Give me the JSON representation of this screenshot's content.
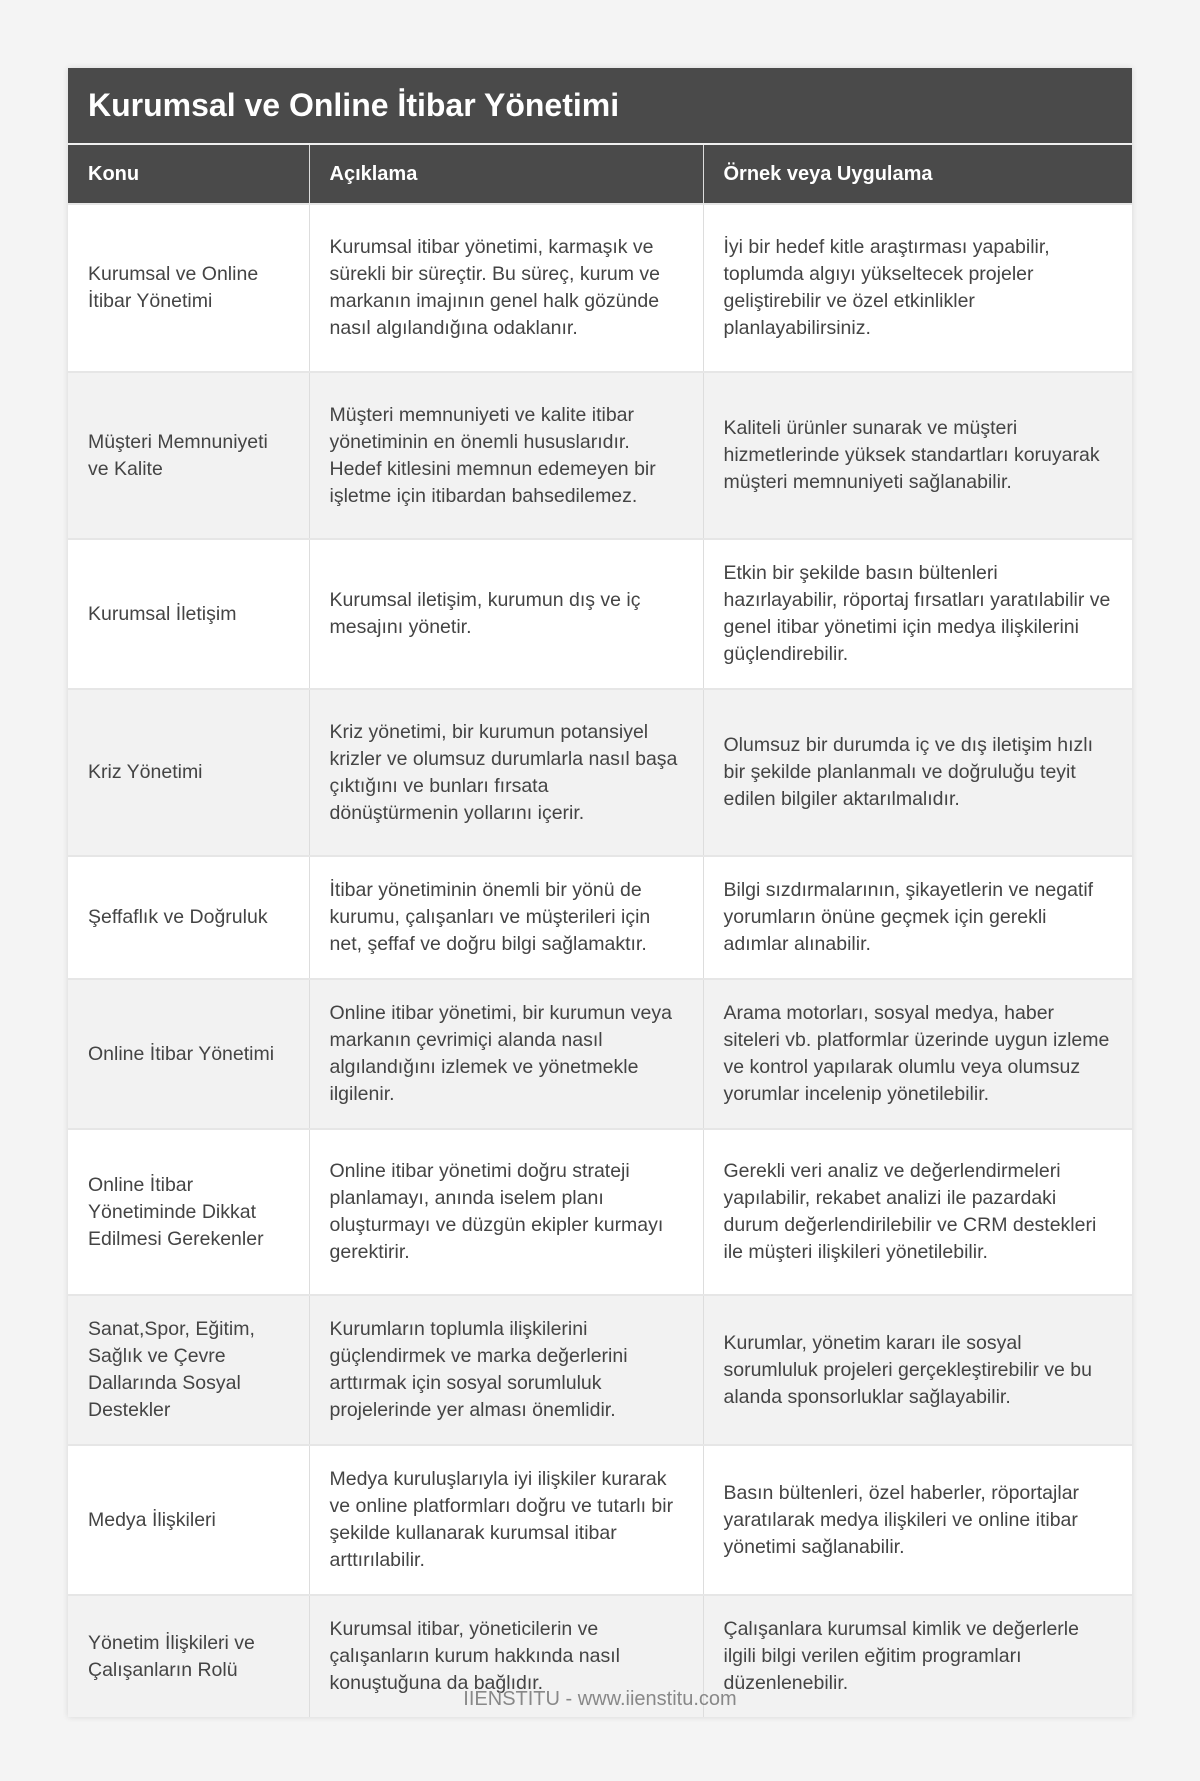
{
  "title": "Kurumsal ve Online İtibar Yönetimi",
  "columns": [
    "Konu",
    "Açıklama",
    "Örnek veya Uygulama"
  ],
  "rows": [
    {
      "topic": "Kurumsal ve Online İtibar Yönetimi",
      "description": "Kurumsal itibar yönetimi, karmaşık ve sürekli bir süreçtir. Bu süreç, kurum ve markanın imajının genel halk gözünde nasıl algılandığına odaklanır.",
      "example": "İyi bir hedef kitle araştırması yapabilir, toplumda algıyı yükseltecek projeler geliştirebilir ve özel etkinlikler planlayabilirsiniz."
    },
    {
      "topic": "Müşteri Memnuniyeti ve Kalite",
      "description": "Müşteri memnuniyeti ve kalite itibar yönetiminin en önemli hususlarıdır. Hedef kitlesini memnun edemeyen bir işletme için itibardan bahsedilemez.",
      "example": "Kaliteli ürünler sunarak ve müşteri hizmetlerinde yüksek standartları koruyarak müşteri memnuniyeti sağlanabilir."
    },
    {
      "topic": "Kurumsal İletişim",
      "description": "Kurumsal iletişim, kurumun dış ve iç mesajını yönetir.",
      "example": "Etkin bir şekilde basın bültenleri hazırlayabilir, röportaj fırsatları yaratılabilir ve genel itibar yönetimi için medya ilişkilerini güçlendirebilir."
    },
    {
      "topic": "Kriz Yönetimi",
      "description": "Kriz yönetimi, bir kurumun potansiyel krizler ve olumsuz durumlarla nasıl başa çıktığını ve bunları fırsata dönüştürmenin yollarını içerir.",
      "example": "Olumsuz bir durumda iç ve dış iletişim hızlı bir şekilde planlanmalı ve doğruluğu teyit edilen bilgiler aktarılmalıdır."
    },
    {
      "topic": "Şeffaflık ve Doğruluk",
      "description": "İtibar yönetiminin önemli bir yönü de kurumu, çalışanları ve müşterileri için net, şeffaf ve doğru bilgi sağlamaktır.",
      "example": "Bilgi sızdırmalarının, şikayetlerin ve negatif yorumların önüne geçmek için gerekli adımlar alınabilir."
    },
    {
      "topic": "Online İtibar Yönetimi",
      "description": "Online itibar yönetimi, bir kurumun veya markanın çevrimiçi alanda nasıl algılandığını izlemek ve yönetmekle ilgilenir.",
      "example": "Arama motorları, sosyal medya, haber siteleri vb. platformlar üzerinde uygun izleme ve kontrol yapılarak olumlu veya olumsuz yorumlar incelenip yönetilebilir."
    },
    {
      "topic": "Online İtibar Yönetiminde Dikkat Edilmesi Gerekenler",
      "description": "Online itibar yönetimi doğru strateji planlamayı, anında iselem planı oluşturmayı ve düzgün ekipler kurmayı gerektirir.",
      "example": "Gerekli veri analiz ve değerlendirmeleri yapılabilir, rekabet analizi ile pazardaki durum değerlendirilebilir ve CRM destekleri ile müşteri ilişkileri yönetilebilir."
    },
    {
      "topic": "Sanat,Spor, Eğitim, Sağlık ve Çevre Dallarında Sosyal Destekler",
      "description": "Kurumların toplumla ilişkilerini güçlendirmek ve marka değerlerini arttırmak için sosyal sorumluluk projelerinde yer alması önemlidir.",
      "example": "Kurumlar, yönetim kararı ile sosyal sorumluluk projeleri gerçekleştirebilir ve bu alanda sponsorluklar sağlayabilir."
    },
    {
      "topic": "Medya İlişkileri",
      "description": "Medya kuruluşlarıyla iyi ilişkiler kurarak ve online platformları doğru ve tutarlı bir şekilde kullanarak kurumsal itibar arttırılabilir.",
      "example": "Basın bültenleri, özel haberler, röportajlar yaratılarak medya ilişkileri ve online itibar yönetimi sağlanabilir."
    },
    {
      "topic": "Yönetim İlişkileri ve Çalışanların Rolü",
      "description": "Kurumsal itibar, yöneticilerin ve çalışanların kurum hakkında nasıl konuştuğuna da bağlıdır.",
      "example": "Çalışanlara kurumsal kimlik ve değerlerle ilgili bilgi verilen eğitim programları düzenlenebilir."
    }
  ],
  "footer": "IIENSTITU - www.iienstitu.com"
}
